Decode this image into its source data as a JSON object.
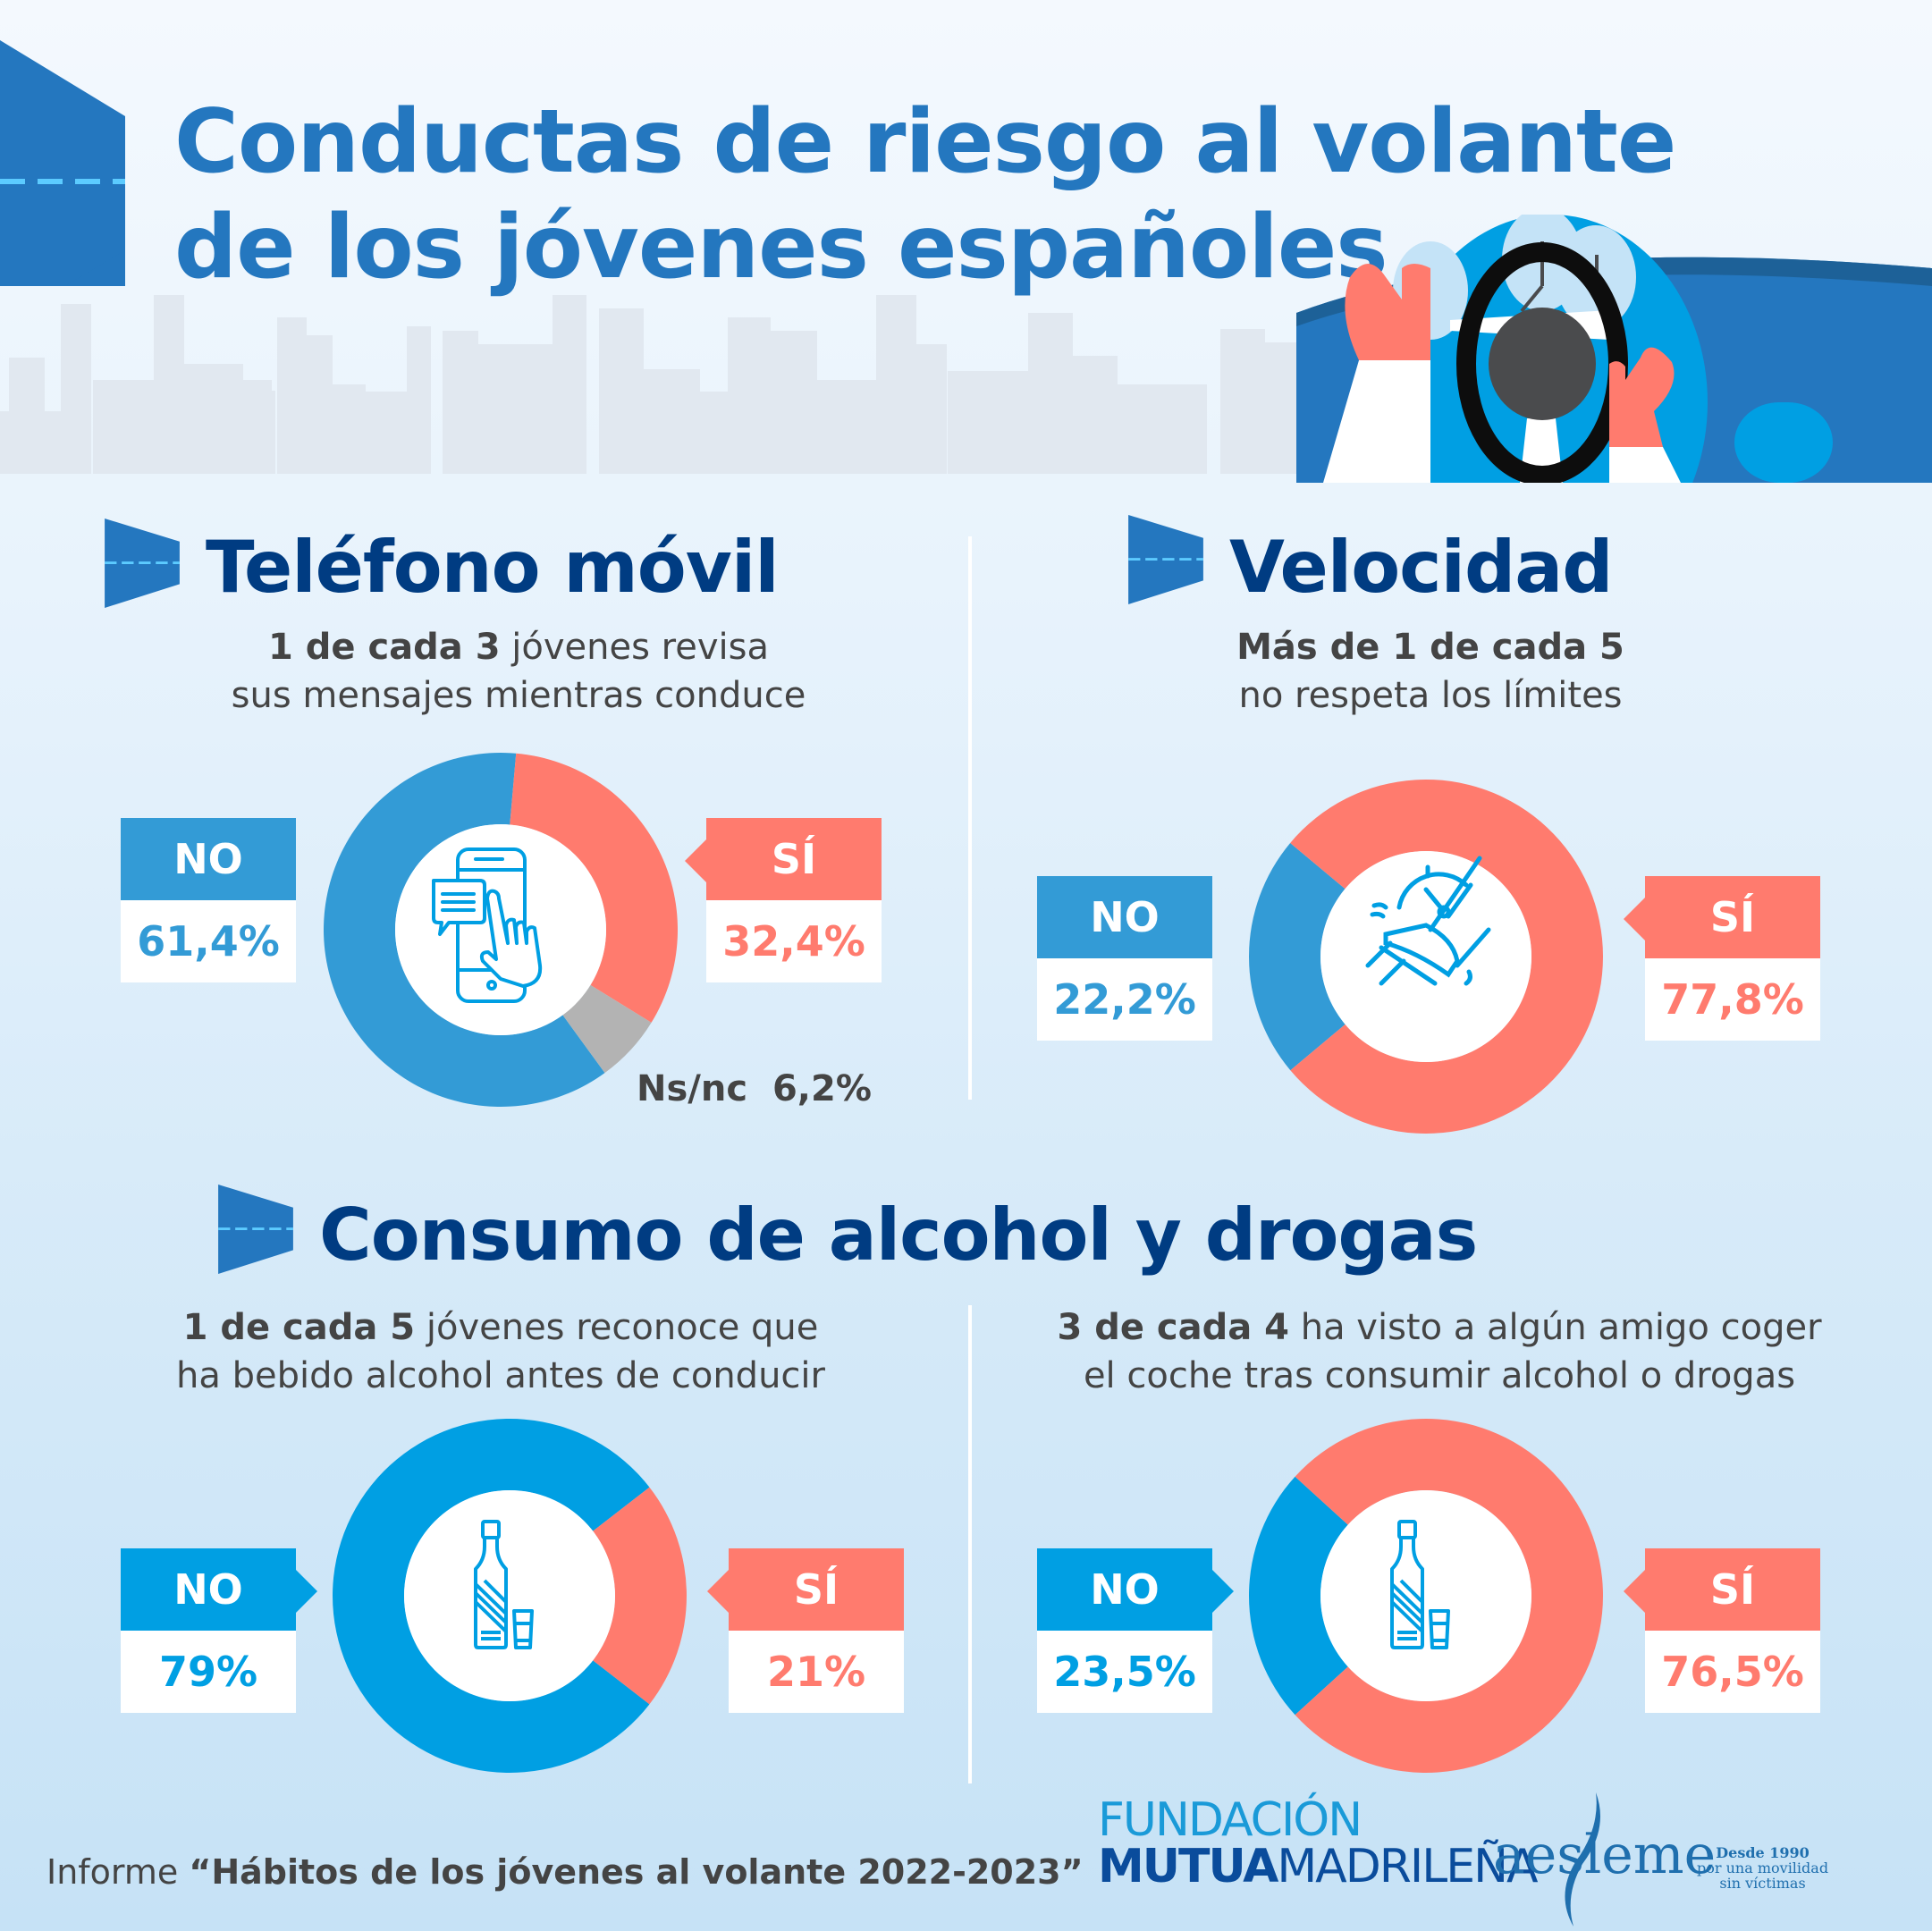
{
  "title": {
    "line1": "Conductas de riesgo al volante",
    "line2": "de los jóvenes españoles"
  },
  "colors": {
    "title": "#2477bf",
    "section_title": "#003c82",
    "no": "#009fe3",
    "no_alt": "#339bd6",
    "si": "#ff7b6e",
    "nsnc": "#b3b3b3"
  },
  "sections": {
    "movil": {
      "title": "Teléfono móvil",
      "subtitle_bold": "1 de cada 3",
      "subtitle_rest": " jóvenes revisa",
      "subtitle_line2": "sus mensajes mientras conduce",
      "icon": "smartphone-touch-icon",
      "no_label": "NO",
      "no_value": "61,4%",
      "si_label": "SÍ",
      "si_value": "32,4%",
      "nsnc_label": "Ns/nc",
      "nsnc_value": "6,2%"
    },
    "velocidad": {
      "title": "Velocidad",
      "subtitle_bold": "Más de 1 de cada 5",
      "subtitle_line2": "no respeta los límites",
      "icon": "speedometer-pedal-icon",
      "no_label": "NO",
      "no_value": "22,2%",
      "si_label": "SÍ",
      "si_value": "77,8%"
    },
    "alcohol": {
      "title": "Consumo de alcohol y drogas",
      "left": {
        "subtitle_bold": "1 de cada 5",
        "subtitle_rest": " jóvenes reconoce que",
        "subtitle_line2": "ha bebido alcohol antes de conducir",
        "icon": "bottle-glass-icon",
        "no_label": "NO",
        "no_value": "79%",
        "si_label": "SÍ",
        "si_value": "21%"
      },
      "right": {
        "subtitle_bold": "3 de cada 4",
        "subtitle_rest": " ha visto a algún amigo coger",
        "subtitle_line2": "el coche tras consumir alcohol o drogas",
        "icon": "bottle-glass-icon",
        "no_label": "NO",
        "no_value": "23,5%",
        "si_label": "SÍ",
        "si_value": "76,5%"
      }
    }
  },
  "footer": {
    "informe_prefix": "Informe ",
    "informe_title": "“Hábitos de los jóvenes al volante 2022-2023”",
    "fundacion_line1": "FUNDACIÓN",
    "fundacion_bold": "MUTUA",
    "fundacion_rest": "MADRILEÑA",
    "aesleme": "aesleme",
    "aesleme_tag1": "Desde 1990",
    "aesleme_tag2": "por una movilidad",
    "aesleme_tag3": "sin víctimas"
  },
  "chart_data": [
    {
      "type": "pie",
      "title": "Teléfono móvil",
      "categories": [
        "NO",
        "SÍ",
        "Ns/nc"
      ],
      "values": [
        61.4,
        32.4,
        6.2
      ],
      "unit": "%",
      "colors": [
        "#339bd6",
        "#ff7b6e",
        "#b3b3b3"
      ],
      "donut": true
    },
    {
      "type": "pie",
      "title": "Velocidad",
      "categories": [
        "NO",
        "SÍ"
      ],
      "values": [
        22.2,
        77.8
      ],
      "unit": "%",
      "colors": [
        "#339bd6",
        "#ff7b6e"
      ],
      "donut": true
    },
    {
      "type": "pie",
      "title": "Ha bebido alcohol antes de conducir",
      "categories": [
        "NO",
        "SÍ"
      ],
      "values": [
        79,
        21
      ],
      "unit": "%",
      "colors": [
        "#009fe3",
        "#ff7b6e"
      ],
      "donut": true
    },
    {
      "type": "pie",
      "title": "Ha visto a algún amigo coger el coche tras consumir alcohol o drogas",
      "categories": [
        "NO",
        "SÍ"
      ],
      "values": [
        23.5,
        76.5
      ],
      "unit": "%",
      "colors": [
        "#009fe3",
        "#ff7b6e"
      ],
      "donut": true
    }
  ]
}
